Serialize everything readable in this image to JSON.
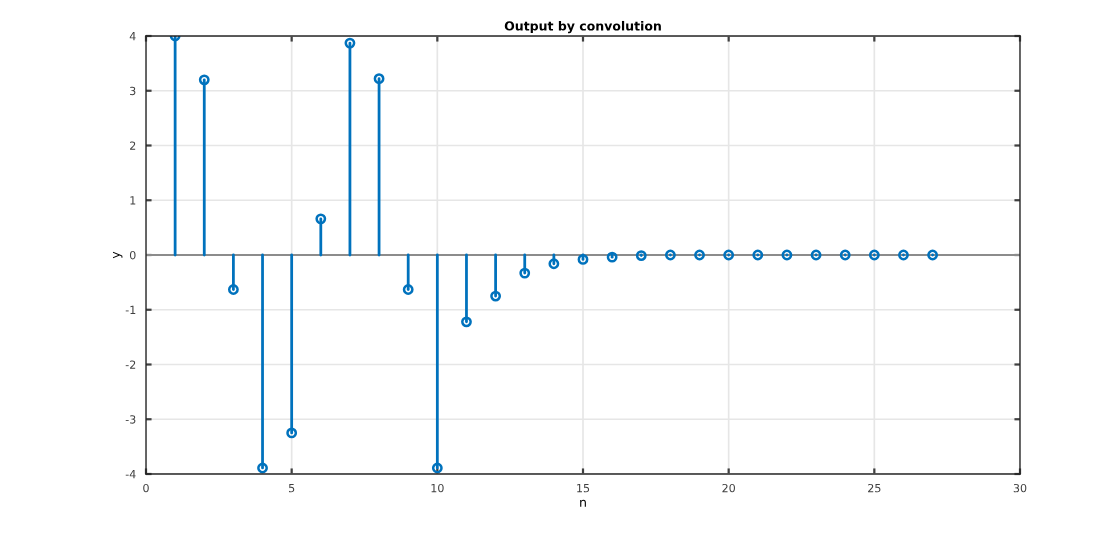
{
  "chart_data": {
    "type": "lollipop",
    "title": "Output by convolution",
    "xlabel": "n",
    "ylabel": "y",
    "x": [
      1,
      2,
      3,
      4,
      5,
      6,
      7,
      8,
      9,
      10,
      11,
      12,
      13,
      14,
      15,
      16,
      17,
      18,
      19,
      20,
      21,
      22,
      23,
      24,
      25,
      26,
      27
    ],
    "series": [
      {
        "color": "#0072bd",
        "values": [
          4.0,
          3.2,
          -0.63,
          -3.89,
          -3.25,
          0.66,
          3.87,
          3.22,
          -0.63,
          -3.89,
          -1.22,
          -0.75,
          -0.33,
          -0.16,
          -0.08,
          -0.04,
          -0.01,
          0,
          0,
          0,
          0,
          0,
          0,
          0,
          0,
          0,
          0
        ]
      }
    ],
    "xlim": [
      0,
      30
    ],
    "xticks": [
      0,
      5,
      10,
      15,
      20,
      25,
      30
    ],
    "ylim": [
      -4,
      4
    ],
    "yticks": [
      -4,
      -3,
      -2,
      -1,
      0,
      1,
      2,
      3,
      4
    ],
    "ref_lines": [
      {
        "axis": "y",
        "value": 0,
        "color": "#8c8c8c"
      }
    ],
    "grid": true,
    "marker": "circle"
  }
}
